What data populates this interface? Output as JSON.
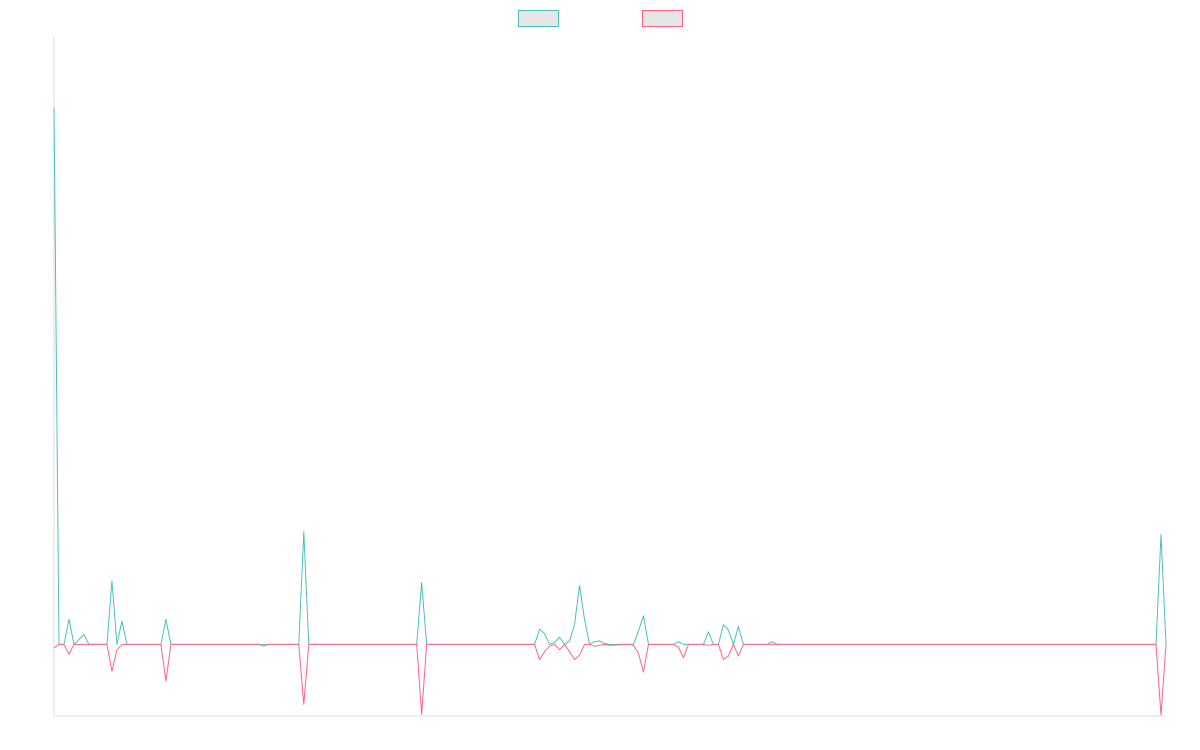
{
  "chart_data": {
    "type": "line",
    "title": "",
    "xlabel": "",
    "ylabel": "",
    "grid": false,
    "legend_position": "top-center",
    "ylim": [
      -8,
      68
    ],
    "x": [
      0,
      1,
      2,
      3,
      4,
      5,
      6,
      7,
      8,
      9,
      10,
      11,
      12,
      13,
      14,
      15,
      16,
      17,
      18,
      19,
      20,
      21,
      22,
      23,
      24,
      25,
      26,
      27,
      28,
      29,
      30,
      31,
      32,
      33,
      34,
      35,
      36,
      37,
      38,
      39,
      40,
      41,
      42,
      43,
      44,
      45,
      46,
      47,
      48,
      49,
      50,
      51,
      52,
      53,
      54,
      55,
      56,
      57,
      58,
      59,
      60,
      61,
      62,
      63,
      64,
      65,
      66,
      67,
      68,
      69,
      70,
      71,
      72,
      73,
      74,
      75,
      76,
      77,
      78,
      79,
      80,
      81,
      82,
      83,
      84,
      85,
      86,
      87,
      88,
      89,
      90,
      91,
      92,
      93,
      94,
      95,
      96,
      97,
      98,
      99,
      100,
      101,
      102,
      103,
      104,
      105,
      106,
      107,
      108,
      109,
      110,
      111,
      112,
      113,
      114,
      115,
      116,
      117,
      118,
      119,
      120,
      121,
      122,
      123,
      124,
      125,
      126,
      127,
      128,
      129,
      130,
      131,
      132,
      133,
      134,
      135,
      136,
      137,
      138,
      139,
      140,
      141,
      142,
      143,
      144,
      145,
      146,
      147,
      148,
      149,
      150,
      151,
      152,
      153,
      154,
      155,
      156,
      157,
      158,
      159,
      160,
      161,
      162,
      163,
      164,
      165,
      166,
      167,
      168,
      169,
      170,
      171,
      172,
      173,
      174,
      175,
      176,
      177,
      178,
      179,
      180,
      181,
      182,
      183,
      184,
      185,
      186,
      187,
      188,
      189,
      190,
      191,
      192,
      193,
      194,
      195,
      196,
      197,
      198,
      199,
      200,
      201,
      202,
      203,
      204,
      205,
      206,
      207,
      208,
      209,
      210,
      211,
      212,
      213,
      214,
      215,
      216,
      217,
      218,
      219,
      220,
      221,
      222,
      223,
      224,
      225,
      226,
      227,
      228,
      229,
      230,
      231,
      232,
      233,
      234,
      235,
      236,
      237,
      238,
      239,
      240,
      241,
      242,
      243,
      244,
      245,
      246,
      247,
      248,
      249,
      250,
      251,
      252,
      253,
      254,
      255,
      256,
      257,
      258,
      259,
      260,
      261,
      262,
      263,
      264,
      265,
      266,
      267,
      268,
      269,
      270,
      271,
      272,
      273,
      274,
      275,
      276,
      277,
      278,
      279,
      280,
      281,
      282,
      283,
      284,
      285,
      286,
      287,
      288,
      289,
      290,
      291,
      292,
      293,
      294,
      295,
      296,
      297,
      298,
      299,
      300,
      301,
      302,
      303,
      304,
      305,
      306,
      307,
      308,
      309,
      310,
      311,
      312,
      313,
      314,
      315,
      316,
      317,
      318,
      319,
      320,
      321,
      322,
      323,
      324,
      325,
      326,
      327,
      328,
      329,
      330,
      331,
      332,
      333,
      334,
      335,
      336,
      337,
      338,
      339,
      340,
      341,
      342,
      343,
      344,
      345,
      346,
      347,
      348,
      349,
      350,
      351,
      352,
      353,
      354,
      355,
      356,
      357,
      358,
      359,
      360,
      361,
      362,
      363,
      364,
      365,
      366,
      367,
      368,
      369,
      370,
      371,
      372,
      373,
      374,
      375,
      376,
      377,
      378,
      379,
      380,
      381,
      382,
      383,
      384,
      385,
      386,
      387,
      388,
      389,
      390,
      391,
      392,
      393,
      394,
      395,
      396,
      397,
      398,
      399,
      400,
      401,
      402,
      403,
      404,
      405,
      406,
      407,
      408,
      409,
      410,
      411,
      412,
      413,
      414,
      415,
      416,
      417,
      418,
      419,
      420,
      421,
      422,
      423,
      424,
      425,
      426,
      427,
      428,
      429,
      430,
      431,
      432,
      433,
      434,
      435,
      436,
      437,
      438,
      439,
      440,
      441,
      442,
      443,
      444,
      445,
      446,
      447,
      448,
      449,
      450,
      451,
      452,
      453,
      454,
      455,
      456,
      457,
      458,
      459,
      460,
      461,
      462,
      463,
      464,
      465,
      466,
      467,
      468,
      469,
      470,
      471,
      472,
      473,
      474,
      475,
      476,
      477,
      478,
      479,
      480,
      481,
      482,
      483,
      484,
      485,
      486,
      487,
      488,
      489,
      490,
      491,
      492,
      493,
      494,
      495,
      496,
      497,
      498,
      499,
      500,
      501,
      502,
      503,
      504,
      505,
      506,
      507,
      508,
      509,
      510,
      511,
      512,
      513,
      514,
      515,
      516,
      517,
      518,
      519,
      520,
      521,
      522,
      523,
      524,
      525,
      526,
      527,
      528,
      529,
      530,
      531,
      532,
      533,
      534,
      535,
      536,
      537,
      538,
      539,
      540,
      541,
      542,
      543,
      544,
      545,
      546,
      547,
      548,
      549,
      550,
      551,
      552,
      553,
      554,
      555,
      556,
      557,
      558,
      559,
      560,
      561,
      562,
      563,
      564,
      565,
      566,
      567,
      568,
      569,
      570,
      571,
      572,
      573,
      574,
      575,
      576,
      577,
      578,
      579,
      580,
      581,
      582,
      583,
      584,
      585,
      586,
      587,
      588,
      589,
      590,
      591,
      592,
      593,
      594,
      595,
      596,
      597,
      598,
      599,
      600,
      601,
      602,
      603,
      604,
      605,
      606,
      607,
      608,
      609,
      610,
      611,
      612,
      613,
      614,
      615,
      616,
      617,
      618,
      619,
      620,
      621,
      622,
      623,
      624,
      625,
      626,
      627,
      628,
      629,
      630,
      631,
      632,
      633,
      634,
      635,
      636,
      637,
      638,
      639,
      640,
      641,
      642,
      643,
      644,
      645,
      646,
      647,
      648,
      649,
      650,
      651,
      652,
      653,
      654,
      655,
      656,
      657,
      658,
      659,
      660,
      661,
      662,
      663,
      664,
      665,
      666,
      667,
      668,
      669,
      670,
      671,
      672,
      673,
      674,
      675,
      676,
      677,
      678,
      679,
      680,
      681,
      682,
      683,
      684,
      685,
      686,
      687,
      688,
      689,
      690,
      691,
      692,
      693,
      694,
      695,
      696,
      697,
      698,
      699,
      700,
      701,
      702,
      703,
      704,
      705,
      706,
      707,
      708,
      709,
      710,
      711,
      712,
      713,
      714,
      715,
      716,
      717,
      718,
      719,
      720,
      721,
      722,
      723,
      724,
      725,
      726,
      727,
      728,
      729,
      730,
      731,
      732,
      733,
      734,
      735,
      736,
      737,
      738,
      739,
      740,
      741,
      742,
      743,
      744,
      745,
      746,
      747,
      748,
      749,
      750,
      751,
      752,
      753,
      754,
      755,
      756,
      757,
      758,
      759,
      760,
      761,
      762,
      763,
      764,
      765,
      766,
      767,
      768,
      769,
      770,
      771,
      772,
      773,
      774,
      775,
      776,
      777,
      778,
      779,
      780,
      781,
      782,
      783,
      784,
      785,
      786,
      787,
      788,
      789,
      790,
      791,
      792,
      793,
      794,
      795,
      796,
      797,
      798,
      799,
      800,
      801,
      802,
      803,
      804,
      805,
      806,
      807,
      808,
      809,
      810,
      811,
      812,
      813,
      814,
      815,
      816,
      817,
      818,
      819,
      820,
      821,
      822,
      823,
      824,
      825,
      826,
      827,
      828,
      829,
      830,
      831,
      832,
      833,
      834,
      835,
      836,
      837,
      838,
      839,
      840,
      841,
      842,
      843,
      844,
      845,
      846,
      847,
      848,
      849,
      850,
      851,
      852,
      853,
      854,
      855,
      856,
      857,
      858,
      859,
      860,
      861,
      862,
      863,
      864,
      865,
      866,
      867,
      868,
      869,
      870,
      871,
      872,
      873,
      874,
      875,
      876,
      877,
      878,
      879,
      880,
      881,
      882,
      883,
      884,
      885,
      886,
      887,
      888,
      889,
      890,
      891,
      892,
      893,
      894,
      895,
      896,
      897,
      898,
      899,
      900,
      901,
      902,
      903,
      904,
      905,
      906,
      907,
      908,
      909,
      910,
      911,
      912,
      913,
      914,
      915,
      916,
      917,
      918,
      919,
      920,
      921,
      922,
      923,
      924,
      925,
      926,
      927,
      928,
      929,
      930,
      931,
      932,
      933,
      934,
      935,
      936,
      937,
      938,
      939,
      940,
      941,
      942,
      943,
      944,
      945,
      946,
      947,
      948,
      949,
      950,
      951,
      952,
      953,
      954,
      955,
      956,
      957,
      958,
      959,
      960,
      961,
      962,
      963,
      964,
      965,
      966,
      967,
      968,
      969,
      970,
      971,
      972,
      973,
      974,
      975,
      976,
      977,
      978,
      979,
      980,
      981,
      982,
      983,
      984,
      985,
      986,
      987,
      988,
      989,
      990,
      991,
      992,
      993,
      994,
      995,
      996,
      997,
      998,
      999,
      1000,
      1001,
      1002,
      1003,
      1004,
      1005,
      1006,
      1007,
      1008,
      1009,
      1010,
      1011,
      1012,
      1013,
      1014,
      1015,
      1016,
      1017,
      1018,
      1019,
      1020,
      1021,
      1022,
      1023,
      1024,
      1025,
      1026,
      1027,
      1028,
      1029,
      1030,
      1031,
      1032,
      1033,
      1034,
      1035,
      1036,
      1037,
      1038,
      1039,
      1040,
      1041,
      1042,
      1043,
      1044,
      1045,
      1046,
      1047,
      1048,
      1049,
      1050,
      1051,
      1052,
      1053,
      1054,
      1055,
      1056,
      1057,
      1058,
      1059,
      1060,
      1061,
      1062,
      1063,
      1064,
      1065,
      1066,
      1067,
      1068,
      1069,
      1070,
      1071,
      1072,
      1073,
      1074,
      1075,
      1076,
      1077,
      1078,
      1079,
      1080,
      1081,
      1082,
      1083,
      1084,
      1085,
      1086,
      1087,
      1088,
      1089,
      1090,
      1091,
      1092,
      1093,
      1094,
      1095,
      1096,
      1097,
      1098,
      1099,
      1100,
      1101,
      1102,
      1103,
      1104,
      1105,
      1106,
      1107,
      1108,
      1109,
      1110,
      1111,
      1112,
      1113
    ],
    "series": [
      {
        "color": "#4bc0c0",
        "points": [
          [
            0,
            60
          ],
          [
            5,
            0
          ],
          [
            10,
            0
          ],
          [
            15,
            2.8
          ],
          [
            20,
            0
          ],
          [
            30,
            1.1
          ],
          [
            35,
            0
          ],
          [
            53,
            0
          ],
          [
            58,
            7.1
          ],
          [
            63,
            0
          ],
          [
            68,
            2.6
          ],
          [
            73,
            0
          ],
          [
            107,
            0
          ],
          [
            112,
            2.8
          ],
          [
            117,
            0
          ],
          [
            205,
            0
          ],
          [
            210,
            0
          ],
          [
            245,
            0
          ],
          [
            250,
            12.6
          ],
          [
            255,
            0
          ],
          [
            363,
            0
          ],
          [
            368,
            6.9
          ],
          [
            373,
            0
          ],
          [
            481,
            0
          ],
          [
            486,
            1.7
          ],
          [
            491,
            1.2
          ],
          [
            496,
            0
          ],
          [
            501,
            0.2
          ],
          [
            506,
            0.8
          ],
          [
            511,
            0
          ],
          [
            516,
            0.4
          ],
          [
            521,
            2.2
          ],
          [
            526,
            6.6
          ],
          [
            531,
            2.8
          ],
          [
            536,
            0
          ],
          [
            541,
            0.3
          ],
          [
            546,
            0.4
          ],
          [
            551,
            0.1
          ],
          [
            556,
            0
          ],
          [
            575,
            0
          ],
          [
            580,
            0
          ],
          [
            585,
            1.5
          ],
          [
            590,
            3.2
          ],
          [
            595,
            0
          ],
          [
            620,
            0
          ],
          [
            625,
            0.3
          ],
          [
            630,
            0
          ],
          [
            635,
            0
          ],
          [
            650,
            0
          ],
          [
            655,
            1.4
          ],
          [
            660,
            0
          ],
          [
            665,
            0
          ],
          [
            670,
            2.2
          ],
          [
            675,
            1.6
          ],
          [
            680,
            0
          ],
          [
            685,
            2.0
          ],
          [
            690,
            0
          ],
          [
            714,
            0
          ],
          [
            719,
            0.3
          ],
          [
            724,
            0
          ],
          [
            1103,
            0
          ],
          [
            1108,
            12.3
          ],
          [
            1113,
            0
          ]
        ]
      },
      {
        "color": "#ff6384",
        "points": [
          [
            0,
            -0.4
          ],
          [
            5,
            0
          ],
          [
            10,
            0
          ],
          [
            15,
            -1.1
          ],
          [
            20,
            0
          ],
          [
            30,
            0
          ],
          [
            35,
            0
          ],
          [
            53,
            0
          ],
          [
            58,
            -3.0
          ],
          [
            63,
            -0.6
          ],
          [
            68,
            0
          ],
          [
            73,
            0
          ],
          [
            107,
            0
          ],
          [
            112,
            -4.1
          ],
          [
            117,
            0
          ],
          [
            205,
            0
          ],
          [
            210,
            -0.2
          ],
          [
            215,
            0
          ],
          [
            245,
            0
          ],
          [
            250,
            -6.7
          ],
          [
            255,
            0
          ],
          [
            363,
            0
          ],
          [
            368,
            -7.8
          ],
          [
            373,
            0
          ],
          [
            481,
            0
          ],
          [
            486,
            -1.7
          ],
          [
            491,
            -0.8
          ],
          [
            496,
            -0.2
          ],
          [
            501,
            0
          ],
          [
            506,
            -0.6
          ],
          [
            511,
            0
          ],
          [
            516,
            -0.8
          ],
          [
            521,
            -1.7
          ],
          [
            526,
            -1.2
          ],
          [
            531,
            0
          ],
          [
            536,
            0
          ],
          [
            541,
            -0.2
          ],
          [
            546,
            -0.1
          ],
          [
            551,
            0
          ],
          [
            556,
            -0.1
          ],
          [
            575,
            0
          ],
          [
            580,
            -0.1
          ],
          [
            585,
            -1.0
          ],
          [
            590,
            -3.1
          ],
          [
            595,
            0
          ],
          [
            620,
            0
          ],
          [
            625,
            -0.3
          ],
          [
            630,
            -1.5
          ],
          [
            635,
            0
          ],
          [
            650,
            0
          ],
          [
            655,
            -0.1
          ],
          [
            660,
            0
          ],
          [
            665,
            0
          ],
          [
            670,
            -1.7
          ],
          [
            675,
            -1.3
          ],
          [
            680,
            0
          ],
          [
            685,
            -1.3
          ],
          [
            690,
            0
          ],
          [
            714,
            0
          ],
          [
            719,
            0
          ],
          [
            724,
            0
          ],
          [
            1103,
            0
          ],
          [
            1108,
            -7.9
          ],
          [
            1113,
            0
          ]
        ]
      }
    ],
    "legend": [
      {
        "color": "#4bc0c0"
      },
      {
        "color": "#ff6384"
      }
    ]
  }
}
